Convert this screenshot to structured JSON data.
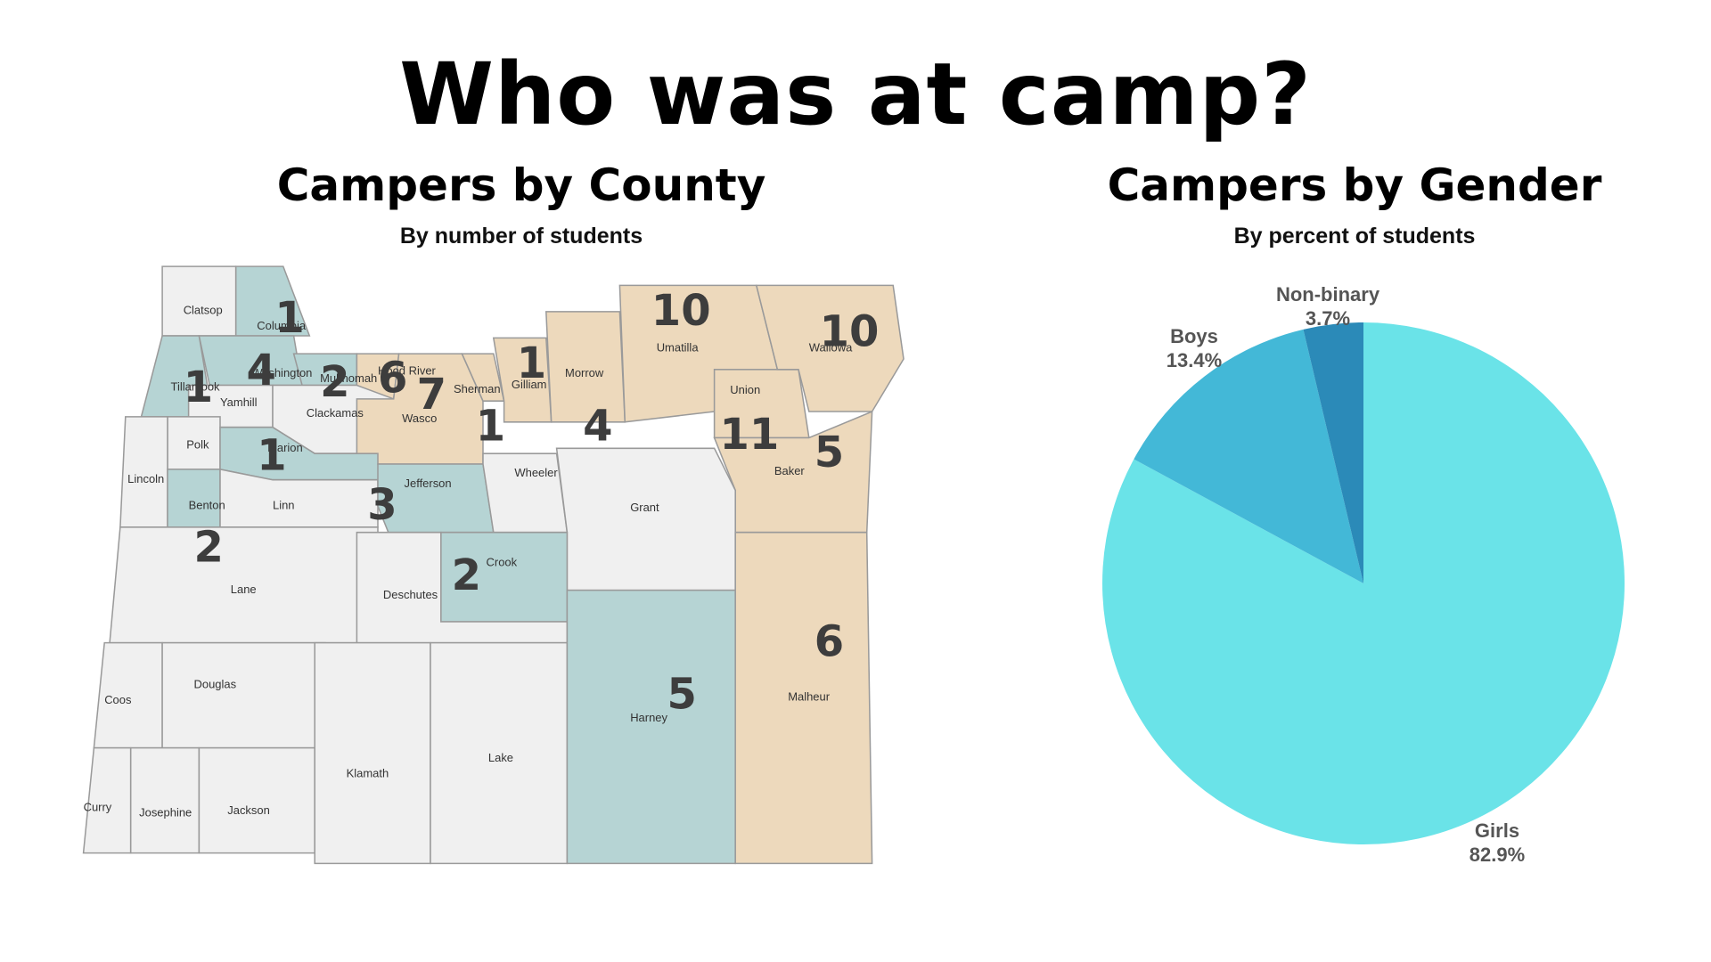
{
  "title": "Who was at camp?",
  "county_section": {
    "title": "Campers by County",
    "subtitle": "By number of students"
  },
  "gender_section": {
    "title": "Campers by Gender",
    "subtitle": "By percent of students"
  },
  "colors": {
    "teal_group": "#b6d4d4",
    "tan_group": "#edd9bc",
    "none": "#f0f0f0",
    "girls": "#6ae3e8",
    "boys": "#43b8d7",
    "nonbinary": "#2b8ab8"
  },
  "chart_data": [
    {
      "type": "map",
      "title": "Campers by County",
      "subtitle": "By number of students",
      "counties": [
        {
          "name": "Clatsop",
          "value": null,
          "group": "none"
        },
        {
          "name": "Columbia",
          "value": 1,
          "group": "teal"
        },
        {
          "name": "Tillamook",
          "value": 1,
          "group": "teal"
        },
        {
          "name": "Washington",
          "value": 4,
          "group": "teal"
        },
        {
          "name": "Multnomah",
          "value": 2,
          "group": "teal"
        },
        {
          "name": "Hood River",
          "value": 6,
          "group": "tan"
        },
        {
          "name": "Yamhill",
          "value": null,
          "group": "none"
        },
        {
          "name": "Clackamas",
          "value": null,
          "group": "none"
        },
        {
          "name": "Polk",
          "value": null,
          "group": "none"
        },
        {
          "name": "Marion",
          "value": 1,
          "group": "teal"
        },
        {
          "name": "Lincoln",
          "value": null,
          "group": "none"
        },
        {
          "name": "Benton",
          "value": 2,
          "group": "teal"
        },
        {
          "name": "Linn",
          "value": null,
          "group": "none"
        },
        {
          "name": "Wasco",
          "value": 7,
          "group": "tan"
        },
        {
          "name": "Sherman",
          "value": 1,
          "group": "tan"
        },
        {
          "name": "Gilliam",
          "value": 1,
          "group": "tan"
        },
        {
          "name": "Morrow",
          "value": 4,
          "group": "tan"
        },
        {
          "name": "Umatilla",
          "value": 10,
          "group": "tan"
        },
        {
          "name": "Union",
          "value": 11,
          "group": "tan"
        },
        {
          "name": "Wallowa",
          "value": 10,
          "group": "tan"
        },
        {
          "name": "Baker",
          "value": 5,
          "group": "tan"
        },
        {
          "name": "Jefferson",
          "value": 3,
          "group": "teal"
        },
        {
          "name": "Wheeler",
          "value": null,
          "group": "none"
        },
        {
          "name": "Grant",
          "value": null,
          "group": "none"
        },
        {
          "name": "Crook",
          "value": 2,
          "group": "teal"
        },
        {
          "name": "Lane",
          "value": null,
          "group": "none"
        },
        {
          "name": "Deschutes",
          "value": null,
          "group": "none"
        },
        {
          "name": "Coos",
          "value": null,
          "group": "none"
        },
        {
          "name": "Douglas",
          "value": null,
          "group": "none"
        },
        {
          "name": "Curry",
          "value": null,
          "group": "none"
        },
        {
          "name": "Josephine",
          "value": null,
          "group": "none"
        },
        {
          "name": "Jackson",
          "value": null,
          "group": "none"
        },
        {
          "name": "Klamath",
          "value": null,
          "group": "none"
        },
        {
          "name": "Lake",
          "value": null,
          "group": "none"
        },
        {
          "name": "Harney",
          "value": 5,
          "group": "teal"
        },
        {
          "name": "Malheur",
          "value": 6,
          "group": "tan"
        }
      ]
    },
    {
      "type": "pie",
      "title": "Campers by Gender",
      "subtitle": "By percent of students",
      "labels": [
        "Girls",
        "Boys",
        "Non-binary"
      ],
      "values": [
        82.9,
        13.4,
        3.7
      ],
      "value_labels": [
        "82.9%",
        "13.4%",
        "3.7%"
      ],
      "colors": [
        "#6ae3e8",
        "#43b8d7",
        "#2b8ab8"
      ]
    }
  ]
}
